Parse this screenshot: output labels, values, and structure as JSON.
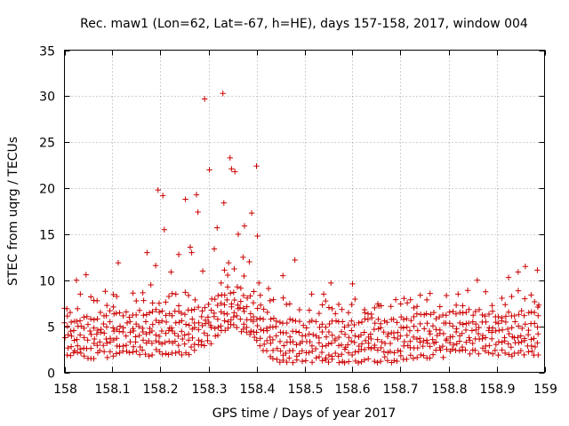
{
  "chart_data": {
    "type": "scatter",
    "title": "Rec. maw1 (Lon=62, Lat=-67, h=HE), days 157-158, 2017, window 004",
    "xlabel": "GPS time / Days of year 2017",
    "ylabel": "STEC from uqrg / TECUs",
    "xlim": [
      158,
      159
    ],
    "ylim": [
      0,
      35
    ],
    "xticks": [
      158,
      158.1,
      158.2,
      158.3,
      158.4,
      158.5,
      158.6,
      158.7,
      158.8,
      158.9,
      159
    ],
    "xtick_labels": [
      "158",
      "158.1",
      "158.2",
      "158.3",
      "158.4",
      "158.5",
      "158.6",
      "158.7",
      "158.8",
      "158.9",
      "159"
    ],
    "yticks": [
      0,
      5,
      10,
      15,
      20,
      25,
      30,
      35
    ],
    "ytick_labels": [
      "0",
      "5",
      "10",
      "15",
      "20",
      "25",
      "30",
      "35"
    ],
    "grid": true,
    "marker": "+",
    "color": "#cc0000",
    "outliers": [
      [
        158.005,
        6.9
      ],
      [
        158.012,
        6.5
      ],
      [
        158.025,
        10.0
      ],
      [
        158.033,
        8.5
      ],
      [
        158.045,
        10.6
      ],
      [
        158.055,
        8.2
      ],
      [
        158.085,
        8.8
      ],
      [
        158.102,
        7.1
      ],
      [
        158.112,
        11.9
      ],
      [
        158.165,
        7.8
      ],
      [
        158.172,
        13.0
      ],
      [
        158.18,
        9.5
      ],
      [
        158.19,
        11.6
      ],
      [
        158.195,
        19.8
      ],
      [
        158.205,
        19.2
      ],
      [
        158.208,
        15.5
      ],
      [
        158.222,
        10.9
      ],
      [
        158.232,
        8.5
      ],
      [
        158.238,
        12.8
      ],
      [
        158.252,
        18.8
      ],
      [
        158.262,
        13.6
      ],
      [
        158.265,
        13.0
      ],
      [
        158.275,
        19.3
      ],
      [
        158.278,
        17.4
      ],
      [
        158.288,
        11.0
      ],
      [
        158.292,
        29.7
      ],
      [
        158.302,
        22.0
      ],
      [
        158.312,
        13.4
      ],
      [
        158.318,
        15.7
      ],
      [
        158.33,
        30.3
      ],
      [
        158.332,
        18.4
      ],
      [
        158.342,
        11.9
      ],
      [
        158.345,
        23.3
      ],
      [
        158.348,
        22.1
      ],
      [
        158.355,
        21.8
      ],
      [
        158.362,
        15.0
      ],
      [
        158.372,
        12.5
      ],
      [
        158.375,
        15.9
      ],
      [
        158.385,
        12.0
      ],
      [
        158.39,
        17.3
      ],
      [
        158.4,
        22.4
      ],
      [
        158.402,
        14.8
      ],
      [
        158.405,
        9.7
      ],
      [
        158.425,
        9.1
      ],
      [
        158.455,
        10.5
      ],
      [
        158.48,
        12.2
      ],
      [
        158.515,
        8.5
      ],
      [
        158.54,
        8.5
      ],
      [
        158.555,
        9.7
      ],
      [
        158.6,
        9.6
      ],
      [
        158.625,
        6.8
      ],
      [
        158.655,
        7.2
      ],
      [
        158.69,
        7.9
      ],
      [
        158.82,
        8.5
      ],
      [
        158.84,
        8.9
      ],
      [
        158.86,
        10.0
      ],
      [
        158.925,
        10.3
      ],
      [
        158.945,
        10.9
      ],
      [
        158.96,
        11.5
      ],
      [
        158.972,
        8.4
      ],
      [
        158.985,
        11.1
      ],
      [
        158.988,
        7.3
      ]
    ]
  }
}
